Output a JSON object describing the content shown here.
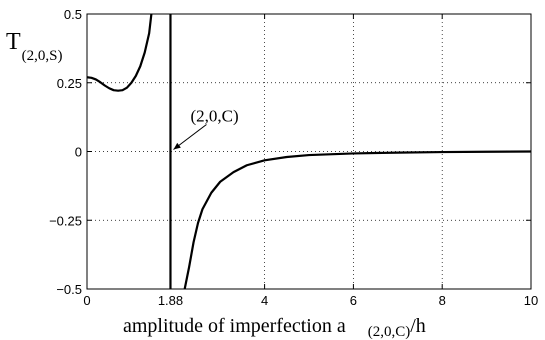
{
  "chart_data": {
    "type": "line",
    "xlabel_main": "amplitude of imperfection a",
    "xlabel_sub": "(2,0,C)",
    "xlabel_tail": "/h",
    "ylabel_main": "T",
    "ylabel_sub": "(2,0,S)",
    "xlim": [
      0,
      10
    ],
    "ylim": [
      -0.5,
      0.5
    ],
    "x_ticks": [
      0,
      1.88,
      4,
      6,
      8,
      10
    ],
    "x_tick_labels": [
      "0",
      "1.88",
      "4",
      "6",
      "8",
      "10"
    ],
    "y_ticks": [
      0.5,
      0.25,
      0,
      -0.25,
      -0.5
    ],
    "y_tick_labels": [
      "0.5",
      "0.25",
      "0",
      "−0.25",
      "−0.5"
    ],
    "grid": true,
    "annotation": {
      "text": "(2,0,C)",
      "x": 1.88,
      "y": 0
    },
    "asymptote_x": 1.88,
    "series": [
      {
        "values": [
          [
            0.0,
            0.27
          ],
          [
            0.1,
            0.268
          ],
          [
            0.2,
            0.262
          ],
          [
            0.3,
            0.252
          ],
          [
            0.4,
            0.24
          ],
          [
            0.5,
            0.23
          ],
          [
            0.6,
            0.223
          ],
          [
            0.7,
            0.221
          ],
          [
            0.8,
            0.223
          ],
          [
            0.9,
            0.232
          ],
          [
            1.0,
            0.25
          ],
          [
            1.1,
            0.275
          ],
          [
            1.2,
            0.31
          ],
          [
            1.3,
            0.36
          ],
          [
            1.4,
            0.43
          ],
          [
            1.45,
            0.5
          ]
        ]
      },
      {
        "values": [
          [
            1.88,
            0.5
          ],
          [
            1.88,
            -0.5
          ]
        ]
      },
      {
        "values": [
          [
            2.2,
            -0.5
          ],
          [
            2.3,
            -0.42
          ],
          [
            2.4,
            -0.33
          ],
          [
            2.5,
            -0.26
          ],
          [
            2.6,
            -0.21
          ],
          [
            2.8,
            -0.15
          ],
          [
            3.0,
            -0.11
          ],
          [
            3.3,
            -0.075
          ],
          [
            3.6,
            -0.05
          ],
          [
            4.0,
            -0.032
          ],
          [
            4.5,
            -0.02
          ],
          [
            5.0,
            -0.013
          ],
          [
            6.0,
            -0.007
          ],
          [
            7.0,
            -0.004
          ],
          [
            8.0,
            -0.002
          ],
          [
            9.0,
            -0.001
          ],
          [
            10.0,
            0.0
          ]
        ]
      }
    ]
  }
}
